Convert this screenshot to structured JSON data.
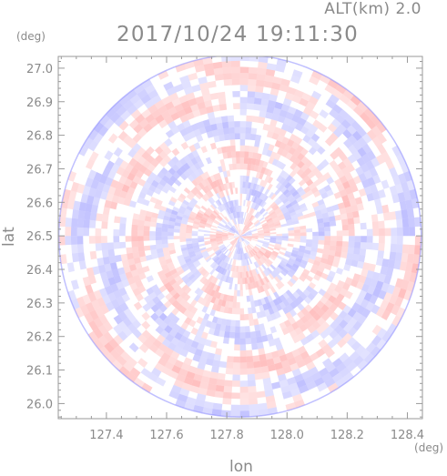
{
  "header": {
    "altitude": "ALT(km) 2.0",
    "timestamp": "2017/10/24 19:11:30"
  },
  "chart_data": {
    "type": "heatmap",
    "title": "2017/10/24 19:11:30",
    "subtitle": "ALT(km) 2.0",
    "xlabel": "lon",
    "ylabel": "lat",
    "x_unit": "(deg)",
    "y_unit": "(deg)",
    "xlim": [
      127.24,
      128.45
    ],
    "ylim": [
      25.955,
      27.035
    ],
    "x_ticks": [
      127.4,
      127.6,
      127.8,
      128.0,
      128.2,
      128.4
    ],
    "x_tick_labels": [
      "127.4",
      "127.6",
      "127.8",
      "128.0",
      "128.2",
      "128.4"
    ],
    "y_ticks": [
      26.0,
      26.1,
      26.2,
      26.3,
      26.4,
      26.5,
      26.6,
      26.7,
      26.8,
      26.9,
      27.0
    ],
    "y_tick_labels": [
      "26.0",
      "26.1",
      "26.2",
      "26.3",
      "26.4",
      "26.5",
      "26.6",
      "26.7",
      "26.8",
      "26.9",
      "27.0"
    ],
    "radar_center": [
      127.844,
      26.5
    ],
    "radar_radius_deg_lat": 0.54,
    "colors": {
      "negative": "#8c8cff",
      "positive": "#ff8c8c",
      "neutral": "#ffffff",
      "frame": "#9a9a9a"
    },
    "grid": false,
    "legend": "none"
  }
}
